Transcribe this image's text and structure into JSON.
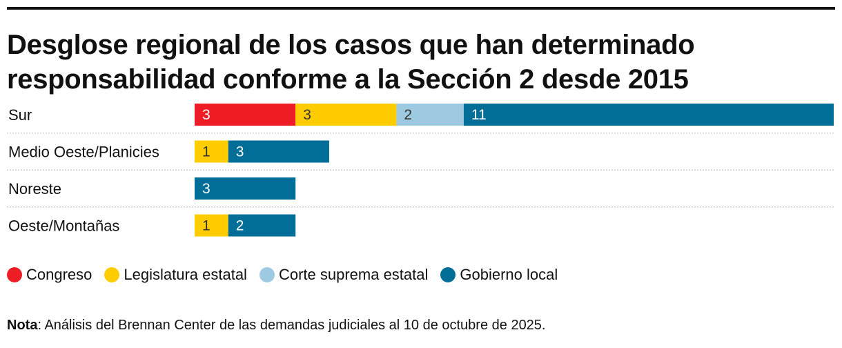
{
  "title": {
    "line1": "Desglose regional de los casos que han determinado",
    "line2": "responsabilidad conforme a la Sección 2 desde 2015"
  },
  "note": {
    "label": "Nota",
    "text": ": Análisis del Brennan Center de las demandas judiciales al 10 de octubre de 2025."
  },
  "legend": [
    {
      "label": "Congreso",
      "color": "#ee1c25"
    },
    {
      "label": "Legislatura estatal",
      "color": "#ffcc00"
    },
    {
      "label": "Corte suprema estatal",
      "color": "#9ecae1"
    },
    {
      "label": "Gobierno local",
      "color": "#006e96"
    }
  ],
  "chart_data": {
    "type": "bar",
    "orientation": "horizontal",
    "stacked": true,
    "title": "Desglose regional de los casos que han determinado responsabilidad conforme a la Sección 2 desde 2015",
    "categories": [
      "Sur",
      "Medio Oeste/Planicies",
      "Noreste",
      "Oeste/Montañas"
    ],
    "series": [
      {
        "name": "Congreso",
        "color": "#ee1c25",
        "label_color": "#ffffff",
        "values": [
          3,
          0,
          0,
          0
        ]
      },
      {
        "name": "Legislatura estatal",
        "color": "#ffcc00",
        "label_color": "#333333",
        "values": [
          3,
          1,
          0,
          1
        ]
      },
      {
        "name": "Corte suprema estatal",
        "color": "#9ecae1",
        "label_color": "#333333",
        "values": [
          2,
          0,
          0,
          0
        ]
      },
      {
        "name": "Gobierno local",
        "color": "#006e96",
        "label_color": "#ffffff",
        "values": [
          11,
          3,
          3,
          2
        ]
      }
    ],
    "xlim": [
      0,
      19
    ],
    "grid": false,
    "legend_position": "bottom-left"
  }
}
